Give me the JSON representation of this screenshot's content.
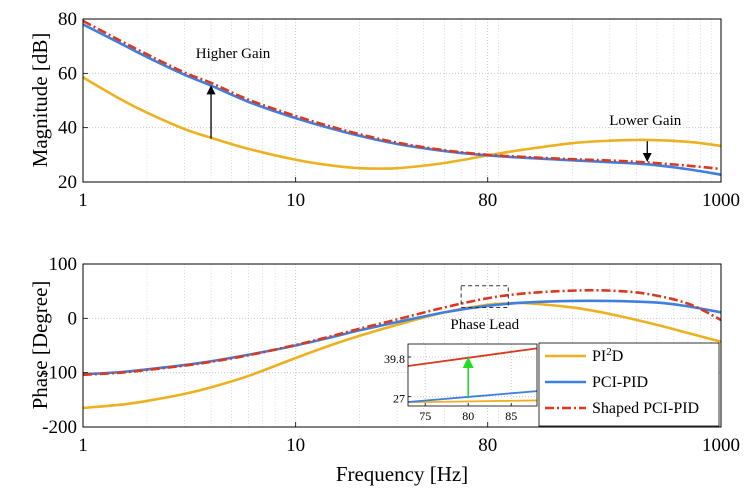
{
  "chart_data": [
    {
      "type": "line",
      "ylabel": "Magnitude [dB]",
      "xscale": "log",
      "xlim": [
        1,
        1000
      ],
      "ylim": [
        20,
        80
      ],
      "xticks": [
        1,
        10,
        80,
        1000
      ],
      "xticklabels": [
        "1",
        "10",
        "80",
        "1000"
      ],
      "yticks": [
        20,
        40,
        60,
        80
      ],
      "yticklabels": [
        "20",
        "40",
        "60",
        "80"
      ],
      "grid": true,
      "annotations": [
        {
          "text": "Higher Gain",
          "x": 4,
          "y_from": 36,
          "y_to": 56
        },
        {
          "text": "Lower Gain",
          "x": 450,
          "y_from": 35,
          "y_to": 27
        }
      ],
      "series": [
        {
          "name": "PI²D",
          "color": "#EDB120",
          "style": "solid",
          "x": [
            1,
            1.5,
            2,
            3,
            4,
            6,
            10,
            15,
            20,
            30,
            50,
            80,
            120,
            200,
            300,
            450,
            700,
            1000
          ],
          "y": [
            58.5,
            50.5,
            45.5,
            39.5,
            36.3,
            32.2,
            28.2,
            26,
            25.1,
            25.1,
            27,
            29.8,
            32,
            34.3,
            35.2,
            35.5,
            34.8,
            33.3
          ]
        },
        {
          "name": "PCI-PID",
          "color": "#3F7FE0",
          "style": "solid",
          "x": [
            1,
            1.5,
            2,
            3,
            4,
            6,
            10,
            15,
            20,
            30,
            50,
            80,
            120,
            200,
            300,
            450,
            700,
            1000
          ],
          "y": [
            78,
            71,
            66,
            59.5,
            55.5,
            49.5,
            43.5,
            39.5,
            37,
            34,
            31.4,
            29.8,
            28.9,
            28,
            27.3,
            26.5,
            24.7,
            22.7
          ]
        },
        {
          "name": "Shaped PCI-PID",
          "color": "#D93A1F",
          "style": "dashdot",
          "x": [
            1,
            1.5,
            2,
            3,
            4,
            6,
            10,
            15,
            20,
            30,
            50,
            80,
            120,
            200,
            300,
            450,
            700,
            1000
          ],
          "y": [
            79.3,
            72,
            67,
            60.3,
            56.5,
            50.3,
            44.3,
            40.2,
            37.6,
            34.5,
            31.7,
            30,
            29.2,
            28.4,
            27.9,
            27.2,
            26,
            24.8
          ]
        }
      ]
    },
    {
      "type": "line",
      "xlabel": "Frequency [Hz]",
      "ylabel": "Phase [Degree]",
      "xscale": "log",
      "xlim": [
        1,
        1000
      ],
      "ylim": [
        -200,
        100
      ],
      "xticks": [
        1,
        10,
        80,
        1000
      ],
      "xticklabels": [
        "1",
        "10",
        "80",
        "1000"
      ],
      "yticks": [
        -200,
        -100,
        0,
        100
      ],
      "yticklabels": [
        "-200",
        "-100",
        "0",
        "100"
      ],
      "grid": true,
      "annotations": [
        {
          "text": "Phase Lead",
          "x_range": [
            60,
            100
          ],
          "y_range": [
            20,
            60
          ]
        }
      ],
      "legend": "bottom-right",
      "series": [
        {
          "name": "PI²D",
          "color": "#EDB120",
          "style": "solid",
          "x": [
            1,
            1.5,
            2,
            3,
            4,
            6,
            10,
            15,
            20,
            30,
            50,
            80,
            100,
            120,
            200,
            300,
            500,
            700,
            1000
          ],
          "y": [
            -165,
            -159,
            -152,
            -139,
            -127,
            -106,
            -73,
            -48,
            -32,
            -12,
            11,
            25,
            27.5,
            28,
            20,
            8,
            -12,
            -27,
            -43
          ]
        },
        {
          "name": "PCI-PID",
          "color": "#3F7FE0",
          "style": "solid",
          "x": [
            1,
            1.5,
            2,
            3,
            4,
            6,
            10,
            15,
            20,
            30,
            50,
            80,
            120,
            200,
            300,
            500,
            700,
            1000
          ],
          "y": [
            -103,
            -99,
            -94,
            -86,
            -79,
            -67,
            -50,
            -34,
            -22,
            -7,
            11,
            23,
            29,
            32,
            32,
            29,
            22,
            11
          ]
        },
        {
          "name": "Shaped PCI-PID",
          "color": "#D93A1F",
          "style": "dashdot",
          "x": [
            1,
            1.5,
            2,
            3,
            4,
            6,
            10,
            15,
            20,
            30,
            50,
            80,
            120,
            200,
            300,
            450,
            700,
            1000
          ],
          "y": [
            -104,
            -100,
            -95,
            -87,
            -80,
            -68,
            -49,
            -32,
            -19,
            -2,
            20,
            37,
            46,
            51,
            51,
            45,
            27,
            -3
          ]
        }
      ]
    },
    {
      "type": "line",
      "role": "inset",
      "xlim": [
        73,
        88
      ],
      "ylim": [
        24,
        44
      ],
      "xticks": [
        75,
        80,
        85
      ],
      "xticklabels": [
        "75",
        "80",
        "85"
      ],
      "yticks": [
        27,
        39.8
      ],
      "yticklabels": [
        "27",
        "39.8"
      ],
      "grid": true,
      "arrow": {
        "x": 80,
        "y_from": 27,
        "y_to": 39.8,
        "color": "#22DD22"
      },
      "series": [
        {
          "name": "PI²D",
          "color": "#EDB120",
          "x": [
            73,
            88
          ],
          "y": [
            25.2,
            25.8
          ]
        },
        {
          "name": "PCI-PID",
          "color": "#3F7FE0",
          "x": [
            73,
            88
          ],
          "y": [
            25.3,
            28.8
          ]
        },
        {
          "name": "Shaped PCI-PID",
          "color": "#D93A1F",
          "x": [
            73,
            88
          ],
          "y": [
            36.9,
            42.6
          ]
        }
      ]
    }
  ]
}
